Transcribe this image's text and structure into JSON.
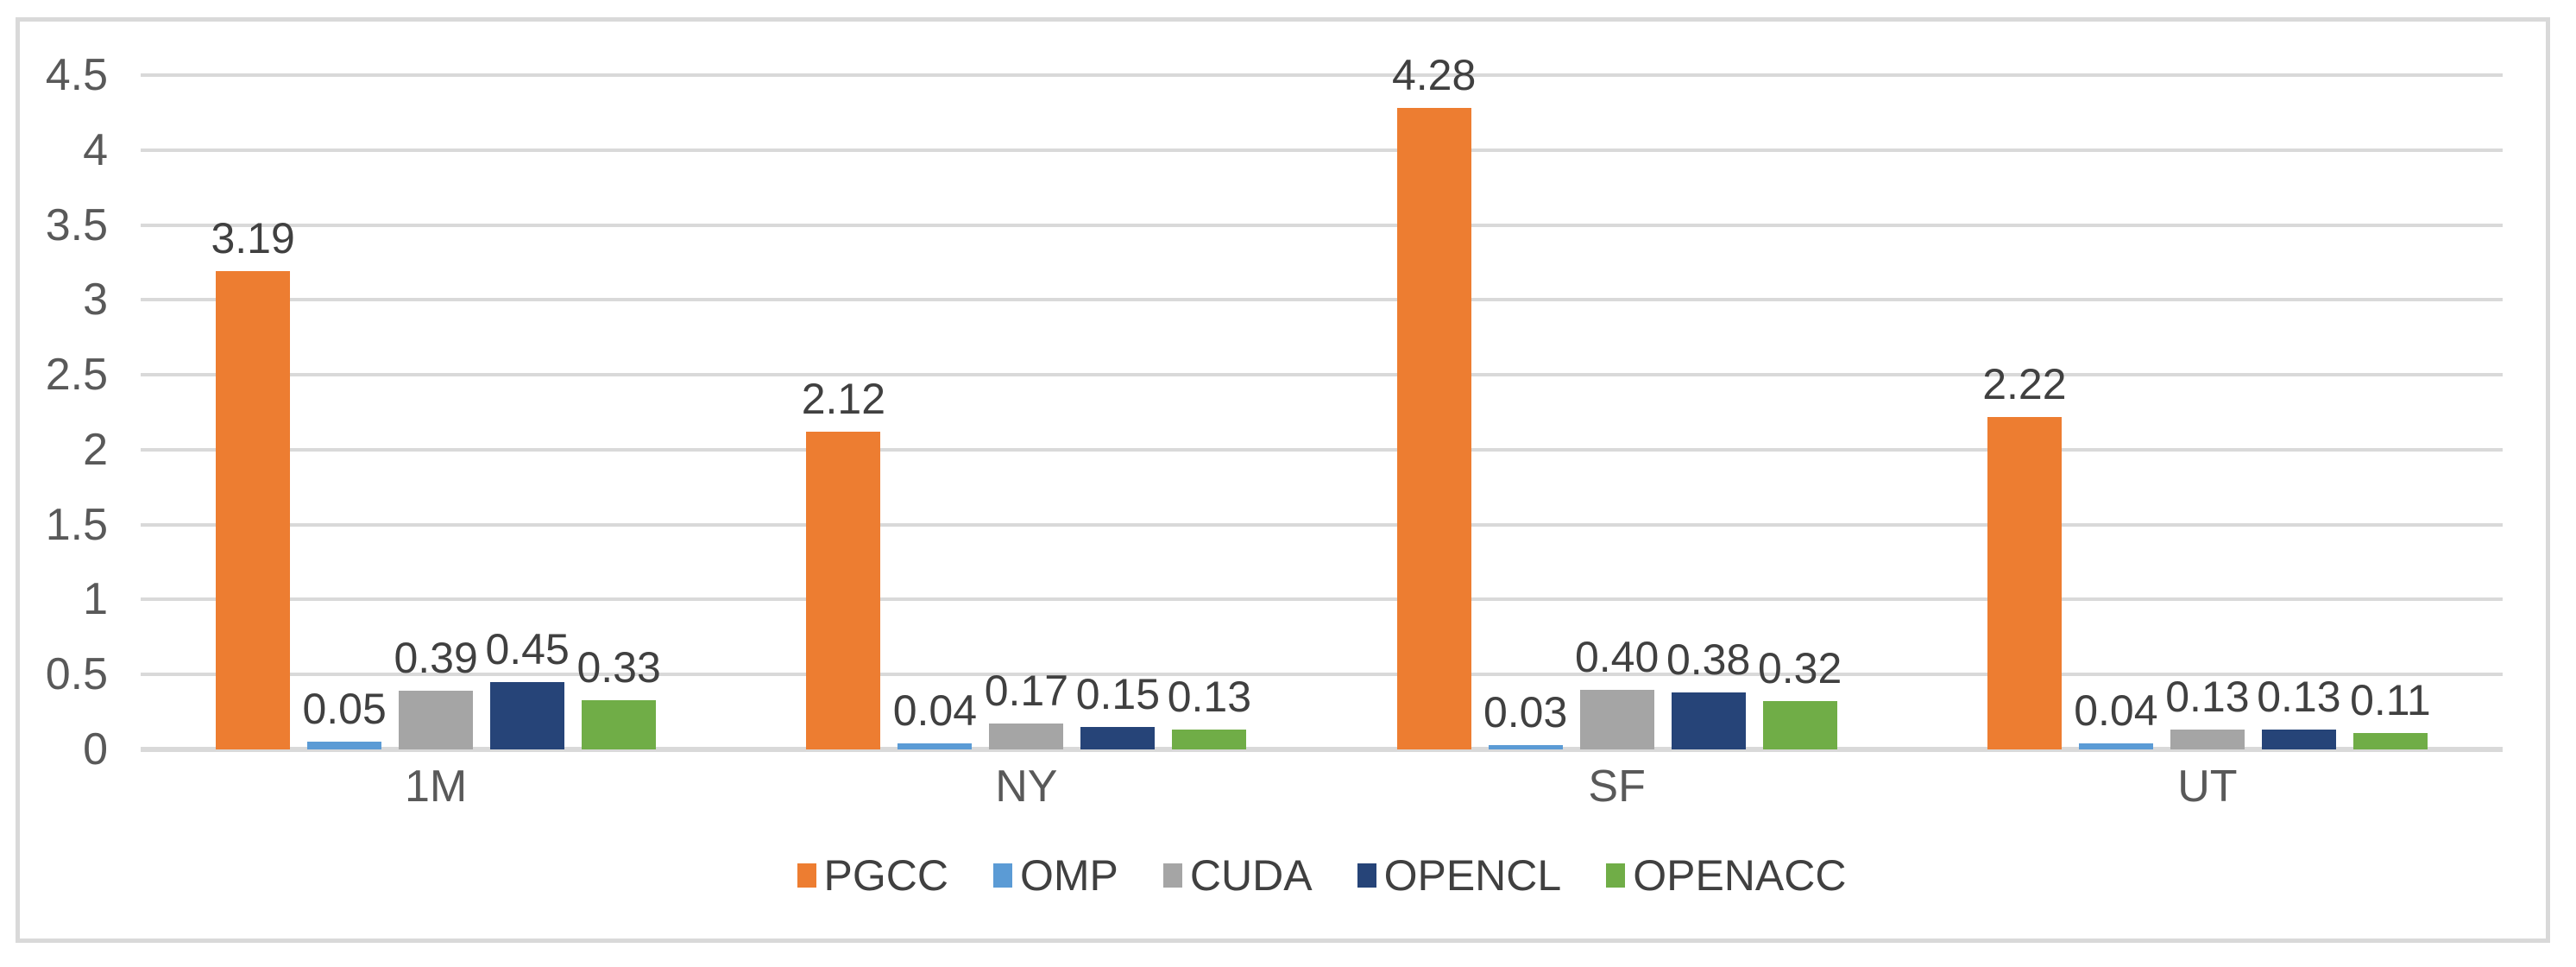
{
  "chart_data": {
    "type": "bar",
    "title": "",
    "xlabel": "",
    "ylabel": "",
    "categories": [
      "1M",
      "NY",
      "SF",
      "UT"
    ],
    "series": [
      {
        "name": "PGCC",
        "color": "#ED7D31",
        "values": [
          3.19,
          2.12,
          4.28,
          2.22
        ],
        "labels": [
          "3.19",
          "2.12",
          "4.28",
          "2.22"
        ]
      },
      {
        "name": "OMP",
        "color": "#5B9BD5",
        "values": [
          0.05,
          0.04,
          0.03,
          0.04
        ],
        "labels": [
          "0.05",
          "0.04",
          "0.03",
          "0.04"
        ]
      },
      {
        "name": "CUDA",
        "color": "#A5A5A5",
        "values": [
          0.39,
          0.17,
          0.4,
          0.13
        ],
        "labels": [
          "0.39",
          "0.17",
          "0.40",
          "0.13"
        ]
      },
      {
        "name": "OPENCL",
        "color": "#264478",
        "values": [
          0.45,
          0.15,
          0.38,
          0.13
        ],
        "labels": [
          "0.45",
          "0.15",
          "0.38",
          "0.13"
        ]
      },
      {
        "name": "OPENACC",
        "color": "#70AD47",
        "values": [
          0.33,
          0.13,
          0.32,
          0.11
        ],
        "labels": [
          "0.33",
          "0.13",
          "0.32",
          "0.11"
        ]
      }
    ],
    "y_axis": {
      "min": 0,
      "max": 4.5,
      "step": 0.5,
      "ticks": [
        "4.5",
        "4",
        "3.5",
        "3",
        "2.5",
        "2",
        "1.5",
        "1",
        "0.5",
        "0"
      ]
    },
    "grid": true,
    "legend_position": "bottom"
  },
  "colors": {
    "background": "#FFFFFF",
    "frame_border": "#D9D9D9",
    "gridline": "#D9D9D9",
    "axis_line": "#D9D9D9",
    "tick_label": "#595959",
    "category_label": "#595959",
    "data_label": "#404040",
    "legend_label": "#404040"
  }
}
